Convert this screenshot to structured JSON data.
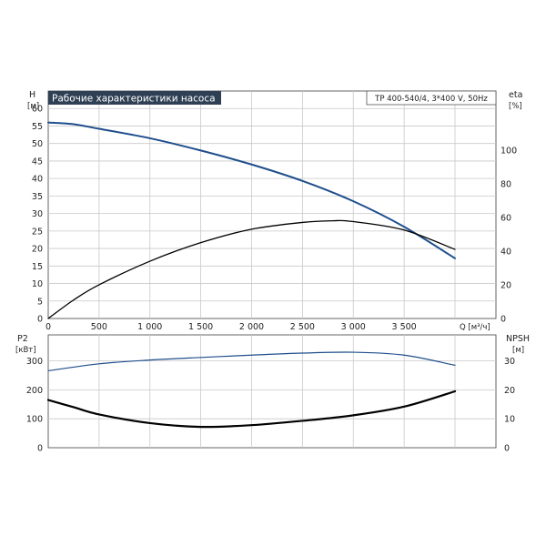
{
  "title": "Рабочие характеристики насоса",
  "model_label": "TP 400-540/4, 3*400 V, 50Hz",
  "colors": {
    "title_bg": "#2f4055",
    "title_fg": "#ffffff",
    "curve_blue": "#1f4e8c",
    "curve_black": "#000000"
  },
  "chart_data": [
    {
      "type": "line",
      "panel": "top",
      "title": "Рабочие характеристики насоса",
      "xlabel": "Q [м³/ч]",
      "ylabel_left": [
        "H",
        "[м]"
      ],
      "ylabel_right": [
        "eta",
        "[%]"
      ],
      "xlim": [
        0,
        4000
      ],
      "ylim_left": [
        0,
        65
      ],
      "ylim_right": [
        0,
        135
      ],
      "x_ticks": [
        0,
        500,
        1000,
        1500,
        2000,
        2500,
        3000,
        3500
      ],
      "x_tick_labels": [
        "0",
        "500",
        "1 000",
        "1 500",
        "2 000",
        "2 500",
        "3 000",
        "3 500"
      ],
      "y_left_ticks": [
        0,
        5,
        10,
        15,
        20,
        25,
        30,
        35,
        40,
        45,
        50,
        55,
        60
      ],
      "y_right_ticks": [
        0,
        20,
        40,
        60,
        80,
        100
      ],
      "grid": true,
      "series": [
        {
          "axis": "left",
          "color": "#1f4e8c",
          "x": [
            0,
            250,
            500,
            1000,
            1500,
            2000,
            2500,
            3000,
            3500,
            4000
          ],
          "y": [
            56,
            55.5,
            54.2,
            51.5,
            48,
            44,
            39.3,
            33.5,
            26.2,
            17.2
          ]
        },
        {
          "axis": "right",
          "color": "#000000",
          "x": [
            0,
            250,
            500,
            1000,
            1500,
            2000,
            2500,
            2800,
            3000,
            3500,
            4000
          ],
          "y": [
            0,
            11,
            20,
            34,
            45,
            53,
            57,
            58,
            57.5,
            52.5,
            41
          ]
        }
      ]
    },
    {
      "type": "line",
      "panel": "bottom",
      "ylabel_left": [
        "P2",
        "[кВт]"
      ],
      "ylabel_right": [
        "NPSH",
        "[м]"
      ],
      "xlim": [
        0,
        4000
      ],
      "ylim_left": [
        0,
        390
      ],
      "ylim_right": [
        0,
        39
      ],
      "y_left_ticks": [
        0,
        100,
        200,
        300
      ],
      "y_right_ticks": [
        0,
        10,
        20,
        30
      ],
      "grid": true,
      "series": [
        {
          "axis": "left",
          "color": "#1f4e8c",
          "x": [
            0,
            500,
            1000,
            1500,
            2000,
            2500,
            3000,
            3500,
            4000
          ],
          "y": [
            266,
            290,
            303,
            312,
            320,
            327,
            330,
            320,
            285
          ]
        },
        {
          "axis": "right",
          "color": "#000000",
          "x": [
            0,
            250,
            500,
            1000,
            1500,
            2000,
            2500,
            3000,
            3500,
            4000
          ],
          "y": [
            16.5,
            14,
            11.5,
            8.5,
            7.2,
            7.8,
            9.3,
            11.2,
            14.2,
            19.5
          ]
        }
      ]
    }
  ]
}
